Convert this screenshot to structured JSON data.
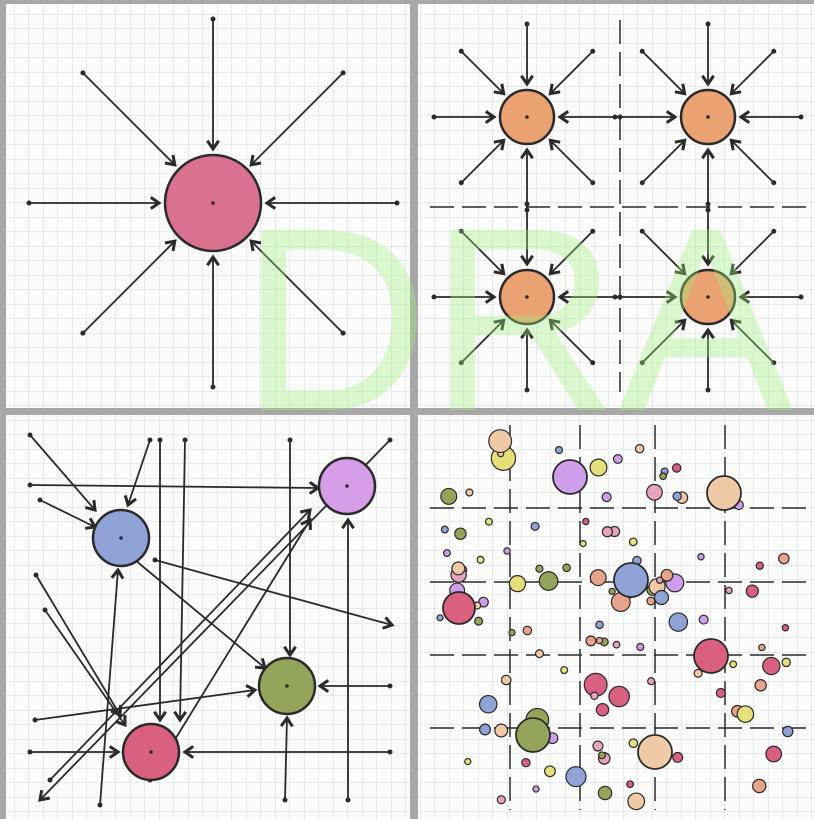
{
  "watermark": "DRA"
}
